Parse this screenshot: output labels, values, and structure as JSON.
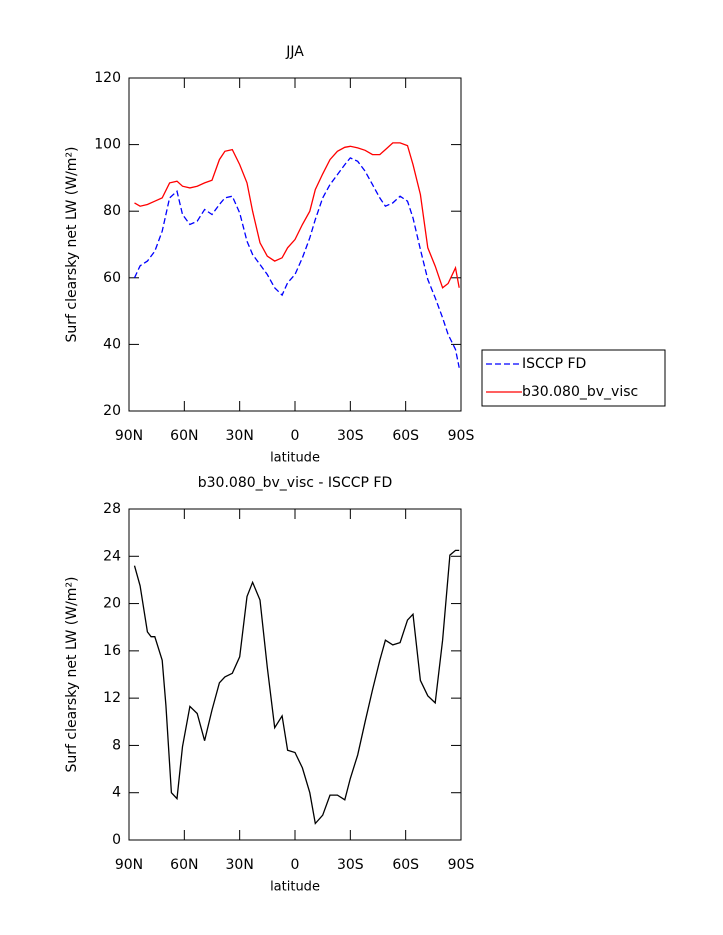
{
  "chart_data": [
    {
      "type": "line",
      "title": "JJA",
      "xlabel": "latitude",
      "ylabel": "Surf clearsky net LW (W/m²)",
      "x": [
        87,
        84,
        80,
        76,
        72,
        68,
        64,
        61,
        57,
        53,
        49,
        45,
        41,
        38,
        34,
        30,
        26,
        23,
        19,
        15,
        11,
        7,
        4,
        0,
        -4,
        -8,
        -11,
        -15,
        -19,
        -23,
        -27,
        -30,
        -34,
        -38,
        -42,
        -46,
        -49,
        -53,
        -57,
        -61,
        -64,
        -68,
        -72,
        -76,
        -80,
        -83,
        -87,
        -89
      ],
      "xlim": [
        90,
        -90
      ],
      "xticks": [
        {
          "value": 90,
          "label": "90N"
        },
        {
          "value": 60,
          "label": "60N"
        },
        {
          "value": 30,
          "label": "30N"
        },
        0,
        {
          "value": -30,
          "label": "30S"
        },
        {
          "value": -60,
          "label": "60S"
        },
        {
          "value": -90,
          "label": "90S"
        }
      ],
      "ylim": [
        20,
        120
      ],
      "yticks": [
        20,
        40,
        60,
        80,
        100,
        120
      ],
      "legend": "right",
      "series": [
        {
          "name": "ISCCP FD",
          "color": "#0000ff",
          "linestyle": "dashed",
          "values": [
            60,
            63.6,
            65,
            68,
            74,
            84,
            86,
            79,
            76,
            77,
            80.5,
            79,
            82,
            84,
            84.5,
            79.5,
            71,
            67,
            64,
            61,
            57,
            54.8,
            58.5,
            61,
            66,
            72,
            77.5,
            84,
            88,
            91,
            94,
            96,
            95,
            92,
            88,
            84,
            81.5,
            82.5,
            84.5,
            83,
            78,
            68.5,
            59.5,
            54,
            48,
            43,
            38.5,
            33
          ]
        },
        {
          "name": "b30.080_bv_visc",
          "color": "#ff0000",
          "linestyle": "solid",
          "values": [
            82.5,
            81.5,
            82,
            83,
            84,
            88.5,
            89,
            87.5,
            87,
            87.5,
            88.5,
            89.3,
            95.5,
            98,
            98.5,
            94,
            88.5,
            80,
            70.5,
            66.5,
            65,
            66,
            69,
            71.5,
            76,
            80,
            86.5,
            91.2,
            95.5,
            98,
            99.2,
            99.5,
            99,
            98.3,
            97,
            97,
            98.5,
            100.5,
            100.5,
            99.7,
            94,
            85,
            69,
            63.5,
            57,
            58.3,
            63,
            57
          ]
        }
      ]
    },
    {
      "type": "line",
      "title": "b30.080_bv_visc - ISCCP FD",
      "xlabel": "latitude",
      "ylabel": "Surf clearsky net LW (W/m²)",
      "x": [
        87,
        84,
        80,
        78,
        76,
        72,
        70,
        67,
        64,
        61,
        57,
        53,
        49,
        45,
        41,
        38,
        34,
        30,
        26,
        23,
        19,
        15,
        11,
        7,
        4,
        0,
        -4,
        -8,
        -11,
        -15,
        -19,
        -23,
        -27,
        -30,
        -34,
        -38,
        -42,
        -46,
        -49,
        -53,
        -57,
        -61,
        -64,
        -68,
        -72,
        -76,
        -80,
        -84,
        -87,
        -89
      ],
      "xlim": [
        90,
        -90
      ],
      "xticks": [
        {
          "value": 90,
          "label": "90N"
        },
        {
          "value": 60,
          "label": "60N"
        },
        {
          "value": 30,
          "label": "30N"
        },
        0,
        {
          "value": -30,
          "label": "30S"
        },
        {
          "value": -60,
          "label": "60S"
        },
        {
          "value": -90,
          "label": "90S"
        }
      ],
      "ylim": [
        0,
        28
      ],
      "yticks": [
        0,
        4,
        8,
        12,
        16,
        20,
        24,
        28
      ],
      "series": [
        {
          "color": "#000000",
          "linestyle": "solid",
          "values": [
            23.2,
            21.5,
            17.6,
            17.2,
            17.2,
            15.2,
            11.4,
            4,
            3.5,
            7.9,
            11.3,
            10.7,
            8.4,
            11,
            13.3,
            13.8,
            14.1,
            15.5,
            20.6,
            21.8,
            20.3,
            14.6,
            9.5,
            10.5,
            7.6,
            7.4,
            6.1,
            4,
            1.4,
            2.1,
            3.8,
            3.8,
            3.4,
            5.2,
            7.2,
            10,
            12.7,
            15.2,
            16.9,
            16.5,
            16.7,
            18.6,
            19.1,
            13.5,
            12.2,
            11.6,
            16.9,
            24.1,
            24.5,
            24.5
          ]
        }
      ]
    }
  ]
}
